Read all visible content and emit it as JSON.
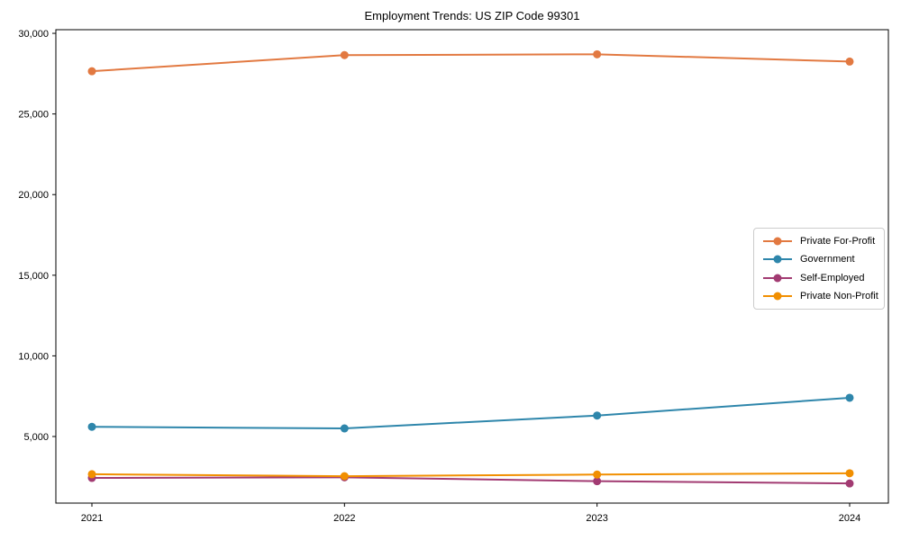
{
  "title": "Employment Trends: US ZIP Code 99301",
  "chart_data": {
    "type": "line",
    "title": "Employment Trends: US ZIP Code 99301",
    "xlabel": "",
    "ylabel": "",
    "x": [
      2021,
      2022,
      2023,
      2024
    ],
    "x_tick_labels": [
      "2021",
      "2022",
      "2023",
      "2024"
    ],
    "y_ticks": [
      5000,
      10000,
      15000,
      20000,
      25000,
      30000
    ],
    "y_tick_labels": [
      "5,000",
      "10,000",
      "15,000",
      "20,000",
      "25,000",
      "30,000"
    ],
    "ylim": [
      870,
      30225
    ],
    "grid": false,
    "legend_position": "center right",
    "marker": "circle",
    "series": [
      {
        "name": "Private For-Profit",
        "color": "#E27941",
        "values": [
          27650,
          28650,
          28700,
          28250
        ]
      },
      {
        "name": "Government",
        "color": "#2E86AB",
        "values": [
          5600,
          5500,
          6300,
          7400
        ]
      },
      {
        "name": "Self-Employed",
        "color": "#A23B72",
        "values": [
          2430,
          2470,
          2230,
          2090
        ]
      },
      {
        "name": "Private Non-Profit",
        "color": "#F18F01",
        "values": [
          2660,
          2540,
          2640,
          2720
        ]
      }
    ]
  }
}
